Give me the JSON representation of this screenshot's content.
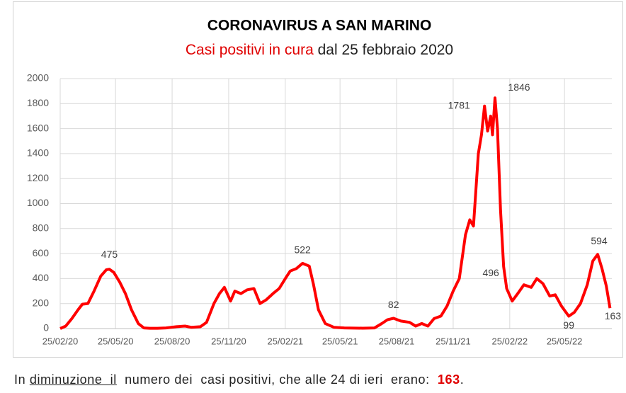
{
  "chart_data": {
    "type": "line",
    "title": "CORONAVIRUS A SAN MARINO",
    "subtitle": [
      {
        "text": "Casi positivi  in cura",
        "color": "#e00000"
      },
      {
        "text": " dal 25 febbraio 2020",
        "color": "#222222"
      }
    ],
    "x": [
      "25/02/20",
      "05/03/20",
      "15/03/20",
      "25/03/20",
      "01/04/20",
      "10/04/20",
      "20/04/20",
      "01/05/20",
      "10/05/20",
      "15/05/20",
      "22/05/20",
      "01/06/20",
      "10/06/20",
      "20/06/20",
      "01/07/20",
      "10/07/20",
      "20/07/20",
      "01/08/20",
      "15/08/20",
      "01/09/20",
      "15/09/20",
      "25/09/20",
      "10/10/20",
      "20/10/20",
      "01/11/20",
      "10/11/20",
      "18/11/20",
      "28/11/20",
      "05/12/20",
      "15/12/20",
      "25/12/20",
      "05/01/21",
      "15/01/21",
      "25/01/21",
      "05/02/21",
      "15/02/21",
      "25/02/21",
      "05/03/21",
      "15/03/21",
      "25/03/21",
      "05/04/21",
      "12/04/21",
      "20/04/21",
      "01/05/21",
      "15/05/21",
      "01/06/21",
      "01/07/21",
      "20/07/21",
      "01/08/21",
      "10/08/21",
      "20/08/21",
      "01/09/21",
      "15/09/21",
      "25/09/21",
      "05/10/21",
      "15/10/21",
      "25/10/21",
      "05/11/21",
      "15/11/21",
      "25/11/21",
      "05/12/21",
      "15/12/21",
      "22/12/21",
      "28/12/21",
      "05/01/22",
      "10/01/22",
      "15/01/22",
      "20/01/22",
      "25/01/22",
      "28/01/22",
      "01/02/22",
      "05/02/22",
      "10/02/22",
      "15/02/22",
      "20/02/22",
      "01/03/22",
      "10/03/22",
      "20/03/22",
      "01/04/22",
      "10/04/22",
      "20/04/22",
      "01/05/22",
      "10/05/22",
      "20/05/22",
      "01/06/22",
      "10/06/22",
      "20/06/22",
      "01/07/22",
      "10/07/22",
      "18/07/22",
      "25/07/22",
      "01/08/22",
      "07/08/22"
    ],
    "series": [
      {
        "name": "Casi positivi in cura",
        "color": "#ff0000",
        "values": [
          0,
          20,
          80,
          150,
          195,
          200,
          300,
          420,
          470,
          475,
          450,
          370,
          280,
          150,
          40,
          5,
          2,
          2,
          5,
          15,
          20,
          10,
          15,
          50,
          200,
          280,
          330,
          220,
          300,
          280,
          310,
          320,
          200,
          230,
          280,
          320,
          400,
          460,
          480,
          522,
          500,
          350,
          150,
          40,
          10,
          5,
          3,
          5,
          40,
          70,
          82,
          60,
          50,
          20,
          40,
          20,
          80,
          100,
          180,
          300,
          400,
          750,
          870,
          820,
          1400,
          1550,
          1781,
          1580,
          1700,
          1550,
          1846,
          1600,
          950,
          496,
          320,
          220,
          280,
          350,
          330,
          400,
          360,
          260,
          270,
          180,
          99,
          130,
          200,
          350,
          540,
          594,
          480,
          340,
          163
        ]
      }
    ],
    "annotations": [
      {
        "x": "15/05/20",
        "value": 475
      },
      {
        "x": "25/03/21",
        "value": 522
      },
      {
        "x": "20/08/21",
        "value": 82
      },
      {
        "x": "15/01/22",
        "value": 1781
      },
      {
        "x": "01/02/22",
        "value": 1846
      },
      {
        "x": "15/02/22",
        "value": 496
      },
      {
        "x": "18/07/22",
        "value": 594
      },
      {
        "x": "01/06/22",
        "value": 99
      },
      {
        "x": "07/08/22",
        "value": 163
      }
    ],
    "xlim": [
      "25/02/20",
      "10/08/22"
    ],
    "xticks": [
      "25/02/20",
      "25/05/20",
      "25/08/20",
      "25/11/20",
      "25/02/21",
      "25/05/21",
      "25/08/21",
      "25/11/21",
      "25/02/22",
      "25/05/22"
    ],
    "ylim": [
      0,
      2000
    ],
    "yticks": [
      0,
      200,
      400,
      600,
      800,
      1000,
      1200,
      1400,
      1600,
      1800,
      2000
    ],
    "grid": true
  },
  "caption": [
    {
      "text": "In "
    },
    {
      "text": "diminuzione  il",
      "style": "u"
    },
    {
      "text": "  numero dei  casi positivi, che alle 24 di ieri  erano:  "
    },
    {
      "text": "163",
      "style": "b"
    },
    {
      "text": "."
    }
  ]
}
